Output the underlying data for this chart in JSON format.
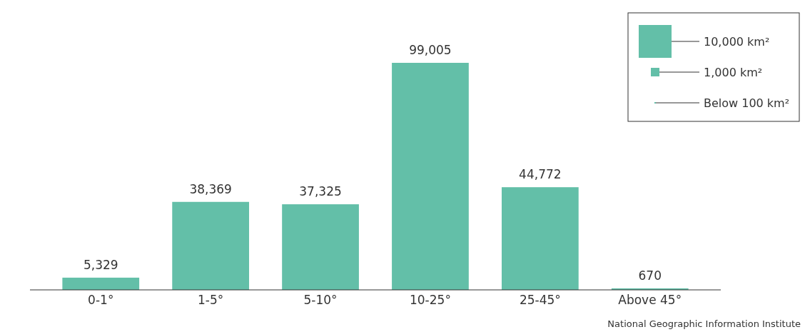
{
  "chart_data": {
    "type": "bar",
    "categories": [
      "0-1°",
      "1-5°",
      "5-10°",
      "10-25°",
      "25-45°",
      "Above 45°"
    ],
    "values": [
      5329,
      38369,
      37325,
      99005,
      44772,
      670
    ],
    "color": "#63bfa8",
    "value_labels": [
      "5,329",
      "38,369",
      "37,325",
      "99,005",
      "44,772",
      "670"
    ],
    "annotations": [
      "10,000 km²",
      "1,000 km²",
      "Below 100 km²",
      "National Geographic Information Institute"
    ]
  }
}
